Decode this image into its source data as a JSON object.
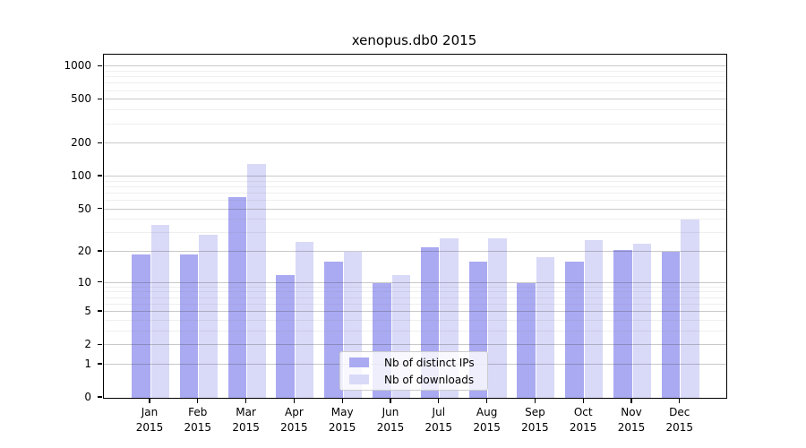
{
  "chart_data": {
    "type": "bar",
    "title": "xenopus.db0 2015",
    "categories": [
      "Jan",
      "Feb",
      "Mar",
      "Apr",
      "May",
      "Jun",
      "Jul",
      "Aug",
      "Sep",
      "Oct",
      "Nov",
      "Dec"
    ],
    "x_year_label": "2015",
    "series": [
      {
        "name": "Nb of distinct IPs",
        "color": "#aaaaf2",
        "values": [
          19,
          19,
          65,
          12,
          16,
          10,
          22,
          16,
          10,
          16,
          21,
          20
        ]
      },
      {
        "name": "Nb of downloads",
        "color": "#d9d9f8",
        "values": [
          36,
          29,
          130,
          25,
          20,
          12,
          27,
          27,
          18,
          26,
          24,
          40
        ]
      }
    ],
    "yscale": "log10(1+y)",
    "y_ticks": [
      0,
      1,
      2,
      5,
      10,
      20,
      50,
      100,
      200,
      500,
      1000
    ],
    "y_minor_ticks": [
      3,
      4,
      6,
      7,
      8,
      9,
      30,
      40,
      60,
      70,
      80,
      90,
      300,
      400,
      600,
      700,
      800,
      900
    ],
    "ylim": [
      0,
      1250
    ],
    "xlabel": "",
    "ylabel": "",
    "grid": "major and minor horizontal gridlines, drawn above bars",
    "legend_position": "lower center inside plot",
    "colors": {
      "bar_distinct_ips": "#aaaaf2",
      "bar_downloads": "#d9d9f8",
      "axis": "#000000",
      "background": "#ffffff"
    }
  }
}
